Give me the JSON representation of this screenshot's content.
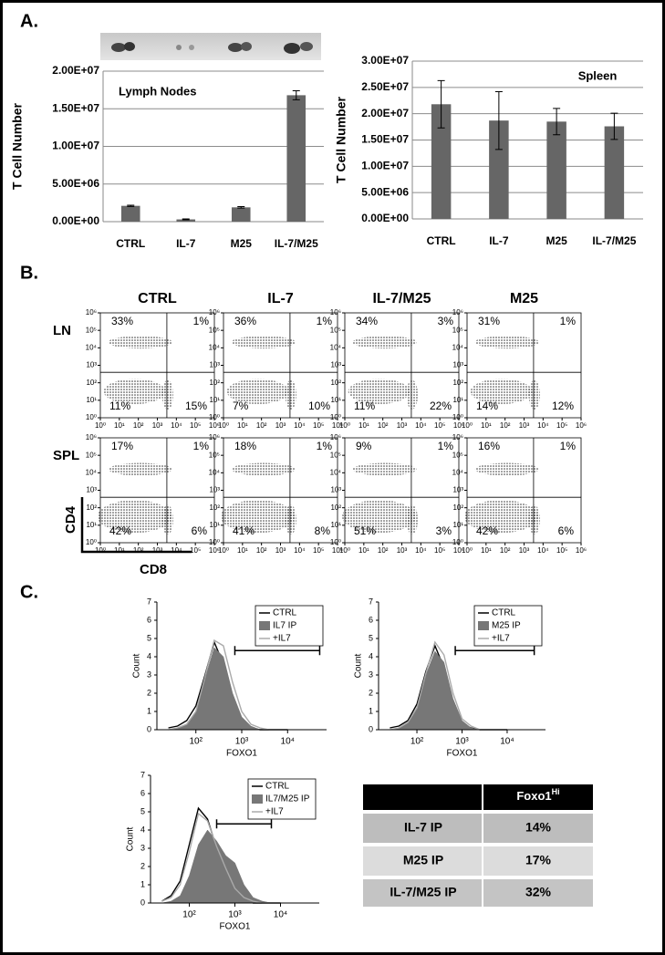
{
  "panel_labels": [
    "A.",
    "B.",
    "C."
  ],
  "chart_data": [
    {
      "type": "bar",
      "title": "Lymph Nodes",
      "y_label": "T Cell Number",
      "categories": [
        "CTRL",
        "IL-7",
        "M25",
        "IL-7/M25"
      ],
      "values": [
        2100000,
        300000,
        1900000,
        16800000
      ],
      "errors": [
        80000,
        60000,
        100000,
        600000
      ],
      "color": "#666666",
      "ylim": [
        0,
        20000000
      ],
      "yticks": [
        {
          "value": 0,
          "label": "0.00E+00"
        },
        {
          "value": 5000000,
          "label": "5.00E+06"
        },
        {
          "value": 10000000,
          "label": "1.00E+07"
        },
        {
          "value": 15000000,
          "label": "1.50E+07"
        },
        {
          "value": 20000000,
          "label": "2.00E+07"
        }
      ],
      "grid": true
    },
    {
      "type": "bar",
      "title": "Spleen",
      "y_label": "T Cell Number",
      "categories": [
        "CTRL",
        "IL-7",
        "M25",
        "IL-7/M25"
      ],
      "values": [
        21800000,
        18700000,
        18500000,
        17600000
      ],
      "errors": [
        4500000,
        5500000,
        2500000,
        2500000
      ],
      "color": "#666666",
      "ylim": [
        0,
        30000000
      ],
      "yticks": [
        {
          "value": 0,
          "label": "0.00E+00"
        },
        {
          "value": 5000000,
          "label": "5.00E+06"
        },
        {
          "value": 10000000,
          "label": "1.00E+07"
        },
        {
          "value": 15000000,
          "label": "1.50E+07"
        },
        {
          "value": 20000000,
          "label": "2.00E+07"
        },
        {
          "value": 25000000,
          "label": "2.50E+07"
        },
        {
          "value": 30000000,
          "label": "3.00E+07"
        }
      ],
      "grid": true
    }
  ],
  "flow": {
    "columns": [
      "CTRL",
      "IL-7",
      "IL-7/M25",
      "M25"
    ],
    "rows": [
      {
        "label": "LN",
        "quadrants": [
          [
            "33%",
            "1%",
            "11%",
            "15%"
          ],
          [
            "36%",
            "1%",
            "7%",
            "10%"
          ],
          [
            "34%",
            "3%",
            "11%",
            "22%"
          ],
          [
            "31%",
            "1%",
            "14%",
            "12%"
          ]
        ]
      },
      {
        "label": "SPL",
        "quadrants": [
          [
            "17%",
            "1%",
            "42%",
            "6%"
          ],
          [
            "18%",
            "1%",
            "41%",
            "8%"
          ],
          [
            "9%",
            "1%",
            "51%",
            "3%"
          ],
          [
            "16%",
            "1%",
            "42%",
            "6%"
          ]
        ]
      }
    ],
    "xlim": [
      0,
      6
    ],
    "ylim": [
      0,
      6
    ],
    "ticks": [
      {
        "value": 0,
        "label": "10⁰"
      },
      {
        "value": 1,
        "label": "10¹"
      },
      {
        "value": 2,
        "label": "10²"
      },
      {
        "value": 3,
        "label": "10³"
      },
      {
        "value": 4,
        "label": "10⁴"
      },
      {
        "value": 5,
        "label": "10⁵"
      },
      {
        "value": 6,
        "label": "10⁶"
      }
    ],
    "gate": {
      "x": 3.5,
      "y": 2.6
    },
    "y_label": "CD4",
    "x_label": "CD8"
  },
  "histograms": {
    "x_label": "FOXO1",
    "y_label": "Count",
    "xlim": [
      1.15,
      4.85
    ],
    "ylim": [
      0,
      7
    ],
    "yticks": [
      0,
      1,
      2,
      3,
      4,
      5,
      6,
      7
    ],
    "xticks": [
      {
        "value": 2,
        "label": "10²"
      },
      {
        "value": 3,
        "label": "10³"
      },
      {
        "value": 4,
        "label": "10⁴"
      }
    ],
    "plots": [
      {
        "x": [
          1.4,
          1.6,
          1.8,
          2.0,
          2.2,
          2.4,
          2.6,
          2.8,
          3.0,
          3.2,
          3.4,
          3.6,
          3.8,
          4.0
        ],
        "gate": [
          2.85,
          4.7
        ],
        "series": [
          {
            "name": "CTRL",
            "color": "#000000",
            "values": [
              0.1,
              0.2,
              0.5,
              1.3,
              3.0,
              4.8,
              3.6,
              1.5,
              0.4,
              0.1,
              0,
              0,
              0,
              0
            ]
          },
          {
            "name": "IL7 IP",
            "color": "#777777",
            "fill": true,
            "values": [
              0,
              0.1,
              0.3,
              1.0,
              2.8,
              4.5,
              4.0,
              2.0,
              0.7,
              0.2,
              0,
              0,
              0,
              0
            ]
          },
          {
            "name": "+IL7",
            "color": "#aaaaaa",
            "values": [
              0,
              0.1,
              0.3,
              1.0,
              2.9,
              4.9,
              4.6,
              2.6,
              1.0,
              0.3,
              0.1,
              0,
              0,
              0
            ]
          }
        ]
      },
      {
        "x": [
          1.4,
          1.6,
          1.8,
          2.0,
          2.2,
          2.4,
          2.6,
          2.8,
          3.0,
          3.2,
          3.4,
          3.6,
          3.8,
          4.0
        ],
        "gate": [
          2.85,
          4.6
        ],
        "series": [
          {
            "name": "CTRL",
            "color": "#000000",
            "values": [
              0.1,
              0.2,
              0.5,
              1.4,
              3.2,
              4.6,
              3.4,
              1.3,
              0.3,
              0.1,
              0,
              0,
              0,
              0
            ]
          },
          {
            "name": "M25 IP",
            "color": "#777777",
            "fill": true,
            "values": [
              0,
              0.1,
              0.4,
              1.2,
              3.0,
              4.3,
              3.7,
              1.7,
              0.5,
              0.1,
              0,
              0,
              0,
              0
            ]
          },
          {
            "name": "+IL7",
            "color": "#aaaaaa",
            "values": [
              0,
              0.1,
              0.4,
              1.2,
              3.1,
              4.8,
              4.1,
              2.0,
              0.6,
              0.2,
              0,
              0,
              0,
              0
            ]
          }
        ]
      },
      {
        "x": [
          1.4,
          1.6,
          1.8,
          2.0,
          2.2,
          2.4,
          2.6,
          2.8,
          3.0,
          3.2,
          3.4,
          3.6,
          3.8,
          4.0
        ],
        "gate": [
          2.6,
          3.8
        ],
        "series": [
          {
            "name": "CTRL",
            "color": "#000000",
            "values": [
              0.1,
              0.4,
              1.2,
              3.2,
              5.2,
              4.6,
              3.0,
              1.7,
              0.6,
              0.2,
              0,
              0,
              0,
              0
            ]
          },
          {
            "name": "IL7/M25 IP",
            "color": "#777777",
            "fill": true,
            "values": [
              0,
              0.1,
              0.4,
              1.5,
              3.2,
              4.0,
              3.4,
              2.6,
              2.2,
              1.0,
              0.3,
              0.1,
              0,
              0
            ]
          },
          {
            "name": "+IL7",
            "color": "#aaaaaa",
            "values": [
              0.1,
              0.3,
              1.0,
              2.8,
              4.9,
              4.5,
              3.1,
              1.9,
              0.8,
              0.3,
              0.1,
              0,
              0,
              0
            ]
          }
        ]
      }
    ]
  },
  "table": {
    "header": {
      "main": "Foxo1",
      "sup": "Hi"
    },
    "rows": [
      [
        "IL-7 IP",
        "14%"
      ],
      [
        "M25 IP",
        "17%"
      ],
      [
        "IL-7/M25  IP",
        "32%"
      ]
    ]
  }
}
